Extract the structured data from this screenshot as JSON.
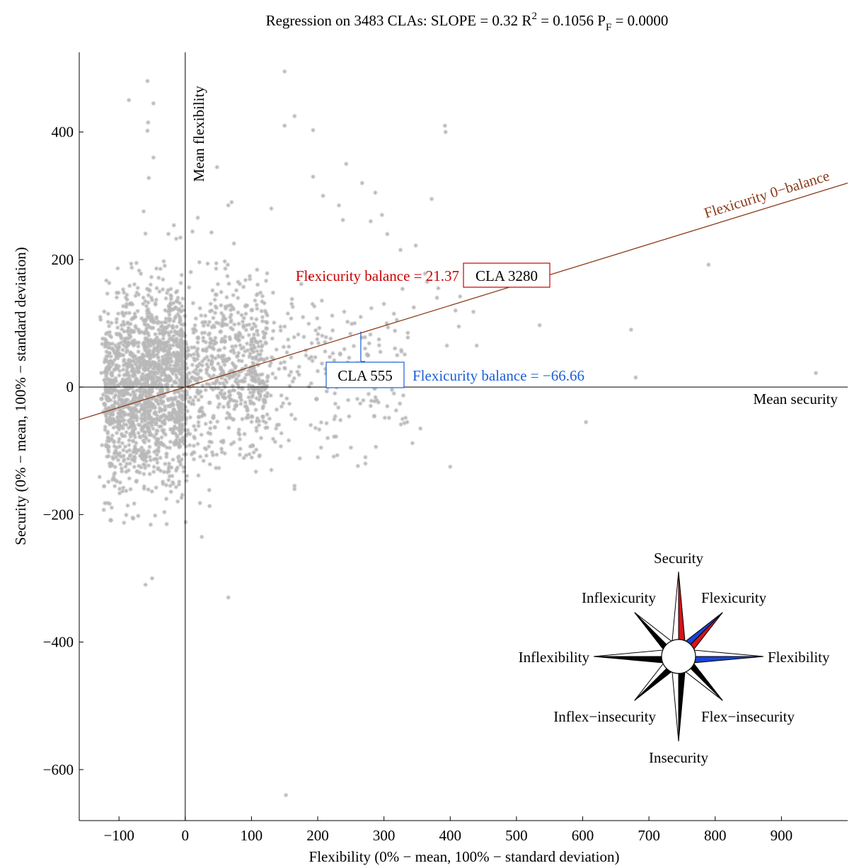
{
  "chart_data": {
    "type": "scatter",
    "title": {
      "prefix": "Regression on 3483 CLAs:  SLOPE = 0.32   R",
      "r_sup": "2",
      "r_rest": " = 0.1056   P",
      "p_sub": "F",
      "p_rest": " = 0.0000"
    },
    "xlabel": "Flexibility (0% − mean, 100% − standard deviation)",
    "ylabel": "Security (0% − mean, 100% − standard deviation)",
    "xlim": [
      -160,
      1000
    ],
    "ylim": [
      -680,
      525
    ],
    "x_ticks": [
      -100,
      0,
      100,
      200,
      300,
      400,
      500,
      600,
      700,
      800,
      900
    ],
    "x_tick_labels": [
      "−100",
      "0",
      "100",
      "200",
      "300",
      "400",
      "500",
      "600",
      "700",
      "800",
      "900"
    ],
    "y_ticks": [
      400,
      200,
      0,
      -200,
      -400,
      -600
    ],
    "y_tick_labels": [
      "400",
      "200",
      "0",
      "−200",
      "−400",
      "−600"
    ],
    "grid": false,
    "regression": {
      "slope": 0.32,
      "label": "Flexicurity 0−balance",
      "x_range": [
        -160,
        1000
      ],
      "color": "#8b3a1a"
    },
    "mean_lines": {
      "mean_flexibility_label": "Mean flexibility",
      "mean_security_label": "Mean security"
    },
    "highlighted": [
      {
        "cla": "CLA 3280",
        "balance_label": "Flexicurity balance = 21.37",
        "x": 265,
        "y": 87,
        "color": "#cc0000"
      },
      {
        "cla": "CLA 555",
        "balance_label": "Flexicurity balance = −66.66",
        "x": 265,
        "y": 22,
        "color": "#1a5fd6"
      }
    ],
    "marker_color": "#b8b8b8",
    "cluster": {
      "n_points": 3483,
      "bulk_x_range": [
        -125,
        110
      ],
      "bulk_y_range": [
        -200,
        240
      ]
    },
    "outliers": [
      [
        150,
        495
      ],
      [
        -57,
        480
      ],
      [
        -85,
        450
      ],
      [
        -48,
        445
      ],
      [
        -56,
        415
      ],
      [
        -57,
        402
      ],
      [
        150,
        410
      ],
      [
        165,
        425
      ],
      [
        193,
        403
      ],
      [
        392,
        410
      ],
      [
        393,
        400
      ],
      [
        -48,
        360
      ],
      [
        -55,
        328
      ],
      [
        48,
        345
      ],
      [
        65,
        285
      ],
      [
        70,
        290
      ],
      [
        193,
        330
      ],
      [
        243,
        350
      ],
      [
        267,
        320
      ],
      [
        287,
        305
      ],
      [
        297,
        270
      ],
      [
        372,
        295
      ],
      [
        238,
        262
      ],
      [
        232,
        285
      ],
      [
        208,
        300
      ],
      [
        130,
        280
      ],
      [
        280,
        260
      ],
      [
        305,
        240
      ],
      [
        325,
        215
      ],
      [
        348,
        222
      ],
      [
        362,
        178
      ],
      [
        365,
        165
      ],
      [
        380,
        140
      ],
      [
        382,
        155
      ],
      [
        408,
        120
      ],
      [
        435,
        118
      ],
      [
        415,
        142
      ],
      [
        315,
        115
      ],
      [
        345,
        125
      ],
      [
        413,
        95
      ],
      [
        535,
        97
      ],
      [
        673,
        90
      ],
      [
        440,
        65
      ],
      [
        395,
        65
      ],
      [
        790,
        192
      ],
      [
        952,
        22
      ],
      [
        680,
        15
      ],
      [
        605,
        -55
      ],
      [
        400,
        -125
      ],
      [
        343,
        -88
      ],
      [
        335,
        -55
      ],
      [
        328,
        -50
      ],
      [
        355,
        -65
      ],
      [
        272,
        -110
      ],
      [
        272,
        -120
      ],
      [
        250,
        -95
      ],
      [
        215,
        -80
      ],
      [
        205,
        -95
      ],
      [
        200,
        -110
      ],
      [
        165,
        -155
      ],
      [
        165,
        -160
      ],
      [
        130,
        -130
      ],
      [
        25,
        -235
      ],
      [
        -28,
        -215
      ],
      [
        -60,
        -310
      ],
      [
        -50,
        -300
      ],
      [
        65,
        -330
      ],
      [
        152,
        -640
      ],
      [
        200,
        25
      ],
      [
        230,
        30
      ],
      [
        265,
        5
      ],
      [
        305,
        -30
      ],
      [
        315,
        -10
      ]
    ],
    "compass_rose": {
      "labels": {
        "n": "Security",
        "ne": "Flexicurity",
        "e": "Flexibility",
        "se": "Flex−insecurity",
        "s": "Insecurity",
        "sw": "Inflex−insecurity",
        "w": "Inflexibility",
        "nw": "Inflexicurity"
      },
      "red": "#d4141a",
      "blue": "#1a44d6"
    }
  }
}
